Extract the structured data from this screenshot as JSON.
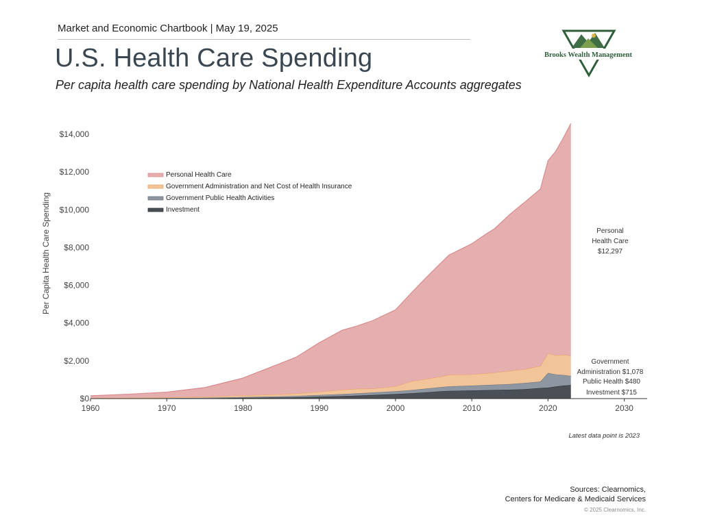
{
  "header": {
    "kicker": "Market and Economic Chartbook | May 19, 2025",
    "title": "U.S. Health Care Spending",
    "subtitle": "Per capita health care spending by National Health Expenditure Accounts aggregates"
  },
  "logo": {
    "name": "Brooks Wealth Management",
    "icon": "mountain-triangle-logo",
    "color": "#2f5e3a"
  },
  "footer": {
    "note": "Latest data point is 2023",
    "sources_line1": "Sources: Clearnomics,",
    "sources_line2": "Centers for Medicare & Medicaid Services",
    "copyright": "© 2025 Clearnomics, Inc."
  },
  "chart_data": {
    "type": "area",
    "stacked": true,
    "ylabel": "Per Capita Health Care Spending",
    "xlim": [
      1960,
      2033
    ],
    "ylim": [
      0,
      14000
    ],
    "xticks": [
      "1960",
      "1970",
      "1980",
      "1990",
      "2000",
      "2010",
      "2020",
      "2030"
    ],
    "yticks": [
      "$0",
      "$2,000",
      "$4,000",
      "$6,000",
      "$8,000",
      "$10,000",
      "$12,000",
      "$14,000"
    ],
    "legend_position": "top-left",
    "x": [
      1960,
      1965,
      1970,
      1975,
      1980,
      1985,
      1987,
      1990,
      1993,
      1995,
      1997,
      2000,
      2002,
      2004,
      2006,
      2007,
      2010,
      2012,
      2013,
      2015,
      2017,
      2019,
      2020,
      2021,
      2022,
      2023
    ],
    "series": [
      {
        "name": "Investment",
        "color": "#4a5056",
        "values": [
          5,
          8,
          12,
          20,
          40,
          60,
          70,
          100,
          130,
          160,
          190,
          240,
          280,
          330,
          390,
          410,
          430,
          450,
          460,
          470,
          500,
          560,
          580,
          640,
          690,
          715
        ]
      },
      {
        "name": "Government Public Health Activities",
        "color": "#8e97a1",
        "values": [
          5,
          10,
          15,
          25,
          40,
          60,
          70,
          90,
          110,
          120,
          130,
          150,
          170,
          200,
          220,
          240,
          260,
          270,
          280,
          300,
          330,
          340,
          780,
          640,
          560,
          480
        ]
      },
      {
        "name": "Government Administration and Net Cost of Health Insurance",
        "color": "#f2c49a",
        "values": [
          20,
          25,
          35,
          60,
          90,
          110,
          130,
          170,
          230,
          240,
          210,
          260,
          460,
          510,
          560,
          610,
          590,
          620,
          640,
          700,
          730,
          830,
          1040,
          1010,
          1070,
          1078
        ]
      },
      {
        "name": "Personal Health Care",
        "color": "#e5afb0",
        "values": [
          120,
          190,
          280,
          480,
          920,
          1650,
          1930,
          2600,
          3150,
          3330,
          3600,
          4050,
          4650,
          5360,
          6030,
          6340,
          6920,
          7410,
          7620,
          8290,
          8860,
          9370,
          10200,
          10800,
          11480,
          12297
        ]
      }
    ],
    "end_labels": [
      {
        "line1": "Personal",
        "line2": "Health Care",
        "line3": "$12,297"
      },
      {
        "line1": "Government",
        "line2": "Administration $1,078"
      },
      {
        "line1": "Public Health $480"
      },
      {
        "line1": "Investment $715"
      }
    ]
  }
}
